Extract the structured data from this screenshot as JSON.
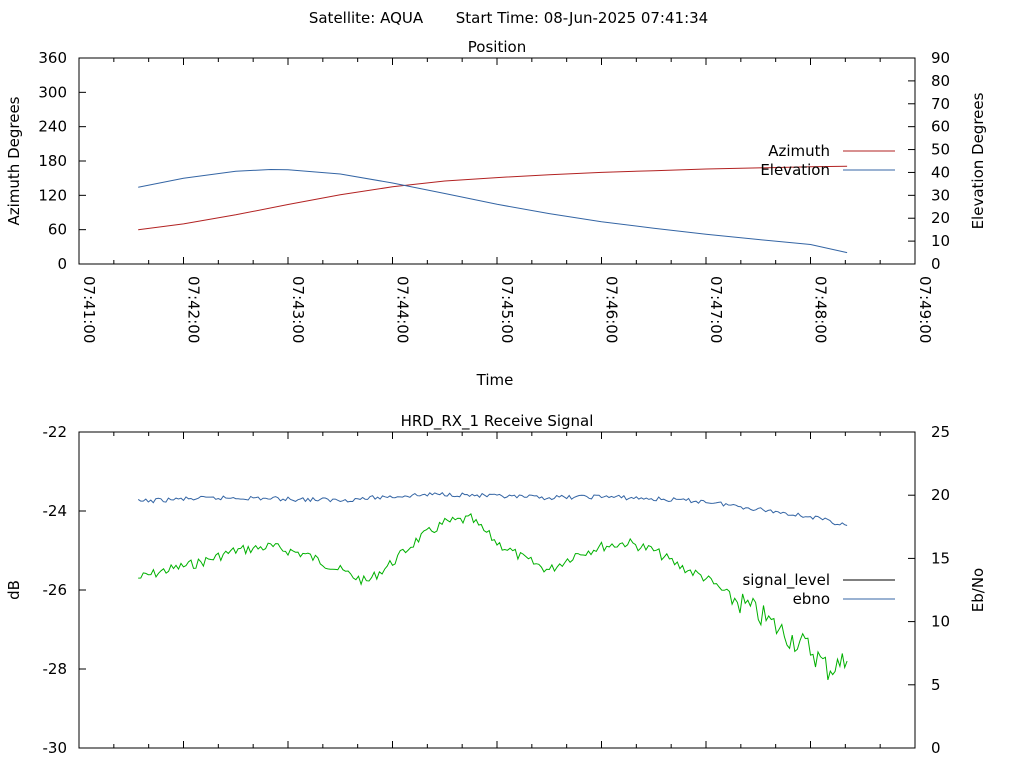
{
  "header": {
    "satellite_label": "Satellite: AQUA",
    "start_label": "Start Time: 08-Jun-2025 07:41:34"
  },
  "chart_data": [
    {
      "type": "line",
      "title": "Position",
      "xlabel": "Time",
      "ylabel": "Azimuth Degrees",
      "y2label": "Elevation Degrees",
      "xlim": [
        "07:41:00",
        "07:49:00"
      ],
      "xticks": [
        "07:41:00",
        "07:42:00",
        "07:43:00",
        "07:44:00",
        "07:45:00",
        "07:46:00",
        "07:47:00",
        "07:48:00",
        "07:49:00"
      ],
      "ylim": [
        0,
        360
      ],
      "yticks": [
        0,
        60,
        120,
        180,
        240,
        300,
        360
      ],
      "y2lim": [
        0,
        90
      ],
      "y2ticks": [
        0,
        10,
        20,
        30,
        40,
        50,
        60,
        70,
        80,
        90
      ],
      "legend_position": "right",
      "series": [
        {
          "name": "Azimuth",
          "axis": "y",
          "color": "#b22222",
          "x": [
            "07:41:34",
            "07:42:00",
            "07:42:30",
            "07:43:00",
            "07:43:30",
            "07:44:00",
            "07:44:30",
            "07:45:00",
            "07:45:30",
            "07:46:00",
            "07:46:30",
            "07:47:00",
            "07:47:30",
            "07:48:00",
            "07:48:21"
          ],
          "y": [
            60,
            70,
            86,
            104,
            121,
            135,
            145,
            151,
            156,
            160,
            163,
            166,
            168,
            170,
            171
          ]
        },
        {
          "name": "Elevation",
          "axis": "y2",
          "color": "#3465a4",
          "x": [
            "07:41:34",
            "07:42:00",
            "07:42:30",
            "07:42:50",
            "07:43:00",
            "07:43:30",
            "07:44:00",
            "07:44:30",
            "07:45:00",
            "07:45:30",
            "07:46:00",
            "07:46:30",
            "07:47:00",
            "07:47:30",
            "07:48:00",
            "07:48:21"
          ],
          "y": [
            33.5,
            37.5,
            40.5,
            41.3,
            41.2,
            39.3,
            35.4,
            30.8,
            26.1,
            22.0,
            18.5,
            15.6,
            13.0,
            10.7,
            8.5,
            5.0
          ]
        }
      ]
    },
    {
      "type": "line",
      "title": "HRD_RX_1 Receive Signal",
      "ylabel": "dB",
      "y2label": "Eb/No",
      "xlim": [
        "07:41:00",
        "07:49:00"
      ],
      "ylim": [
        -30,
        -22
      ],
      "yticks": [
        -30,
        -28,
        -26,
        -24,
        -22
      ],
      "y2lim": [
        0,
        25
      ],
      "y2ticks": [
        0,
        5,
        10,
        15,
        20,
        25
      ],
      "legend_position": "right",
      "series": [
        {
          "name": "signal_level",
          "axis": "y",
          "color": "#00b000",
          "legend_color": "#000000",
          "x": [
            "07:41:34",
            "07:41:50",
            "07:42:10",
            "07:42:30",
            "07:42:50",
            "07:43:10",
            "07:43:30",
            "07:43:45",
            "07:44:00",
            "07:44:15",
            "07:44:30",
            "07:44:45",
            "07:45:00",
            "07:45:15",
            "07:45:30",
            "07:45:45",
            "07:46:00",
            "07:46:15",
            "07:46:30",
            "07:46:45",
            "07:47:00",
            "07:47:15",
            "07:47:30",
            "07:47:45",
            "07:48:00",
            "07:48:10",
            "07:48:21"
          ],
          "y": [
            -25.7,
            -25.5,
            -25.3,
            -25.0,
            -24.9,
            -25.1,
            -25.5,
            -25.8,
            -25.3,
            -24.7,
            -24.3,
            -24.2,
            -24.8,
            -25.2,
            -25.5,
            -25.1,
            -24.9,
            -24.8,
            -25.0,
            -25.4,
            -25.7,
            -26.2,
            -26.6,
            -27.1,
            -27.5,
            -28.0,
            -27.8
          ]
        },
        {
          "name": "ebno",
          "axis": "y2",
          "color": "#3465a4",
          "x": [
            "07:41:34",
            "07:42:00",
            "07:42:30",
            "07:43:00",
            "07:43:30",
            "07:44:00",
            "07:44:30",
            "07:45:00",
            "07:45:30",
            "07:46:00",
            "07:46:30",
            "07:47:00",
            "07:47:30",
            "07:48:00",
            "07:48:21"
          ],
          "y": [
            19.5,
            19.7,
            19.8,
            19.7,
            19.6,
            19.9,
            20.1,
            19.9,
            19.8,
            19.9,
            19.7,
            19.5,
            18.9,
            18.3,
            17.6
          ]
        }
      ]
    }
  ]
}
